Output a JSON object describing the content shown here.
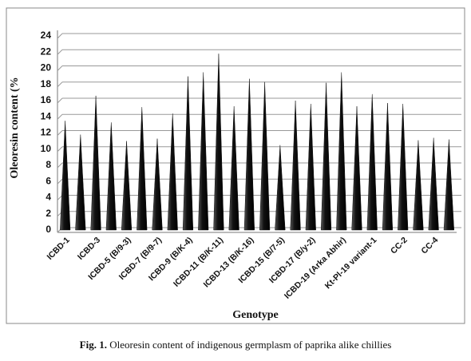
{
  "chart_data": {
    "type": "cone-bar",
    "y_label": "Oleoresin content (%",
    "x_label": "Genotype",
    "caption_prefix": "Fig. 1.",
    "caption": "Oleoresin content of indigenous germplasm of paprika alike chillies",
    "categories": [
      "ICBD-1",
      null,
      "ICBD-3",
      null,
      "ICBD-5 (B/9-3)",
      null,
      "ICBD-7 (B/9-7)",
      null,
      "ICBD-9 (B/K-4)",
      null,
      "ICBD-11 (B/K-11)",
      null,
      "ICBD-13 (B/K-16)",
      null,
      "ICBD-15 (B/7-5)",
      null,
      "ICBD-17 (B/y-2)",
      null,
      "ICBD-19 (Arka Abhir)",
      null,
      "Kt-Pl-19 variant-1",
      null,
      "CC-2",
      null,
      "CC-4",
      null
    ],
    "values": [
      13.5,
      11.8,
      16.6,
      13.3,
      11.0,
      15.2,
      11.3,
      14.4,
      19.0,
      19.5,
      21.8,
      15.3,
      18.7,
      18.3,
      10.5,
      16.0,
      15.6,
      18.2,
      19.5,
      15.3,
      16.8,
      15.7,
      15.6,
      11.1,
      11.4,
      11.2
    ],
    "color": "#111111",
    "ylim": [
      0,
      24
    ],
    "yticks": [
      0,
      2,
      4,
      6,
      8,
      10,
      12,
      14,
      16,
      18,
      20,
      22,
      24
    ],
    "grid": true
  }
}
